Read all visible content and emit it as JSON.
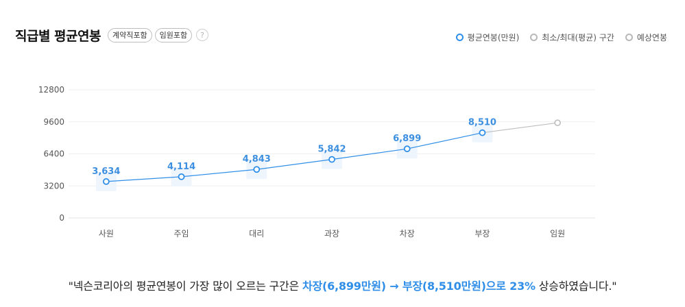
{
  "header": {
    "title": "직급별 평균연봉",
    "chips": [
      "계약직포함",
      "임원포함"
    ],
    "help": "?"
  },
  "legend": [
    {
      "label": "평균연봉(만원)",
      "color": "#2f8ee8"
    },
    {
      "label": "최소/최대(평균) 구간",
      "color": "#b8b8b8"
    },
    {
      "label": "예상연봉",
      "color": "#b8b8b8"
    }
  ],
  "chart_data": {
    "type": "line",
    "categories": [
      "사원",
      "주임",
      "대리",
      "과장",
      "차장",
      "부장",
      "임원"
    ],
    "yticks": [
      "0",
      "3200",
      "6400",
      "9600",
      "12800"
    ],
    "ylim": [
      0,
      12800
    ],
    "series": [
      {
        "name": "평균연봉(만원)",
        "color": "#2f8ee8",
        "values": [
          3634,
          4114,
          4843,
          5842,
          6899,
          8510,
          null
        ],
        "labels": [
          "3,634",
          "4,114",
          "4,843",
          "5,842",
          "6,899",
          "8,510",
          ""
        ]
      },
      {
        "name": "예상연봉",
        "color": "#bdbdbd",
        "values": [
          null,
          null,
          null,
          null,
          null,
          8510,
          9500
        ]
      }
    ],
    "grid": true
  },
  "footer": {
    "prefix": "\"넥슨코리아의 평균연봉이 가장 많이 오르는 구간은 ",
    "highlight": "차장(6,899만원) → 부장(8,510만원)으로 23%",
    "suffix": " 상승하였습니다.\""
  }
}
